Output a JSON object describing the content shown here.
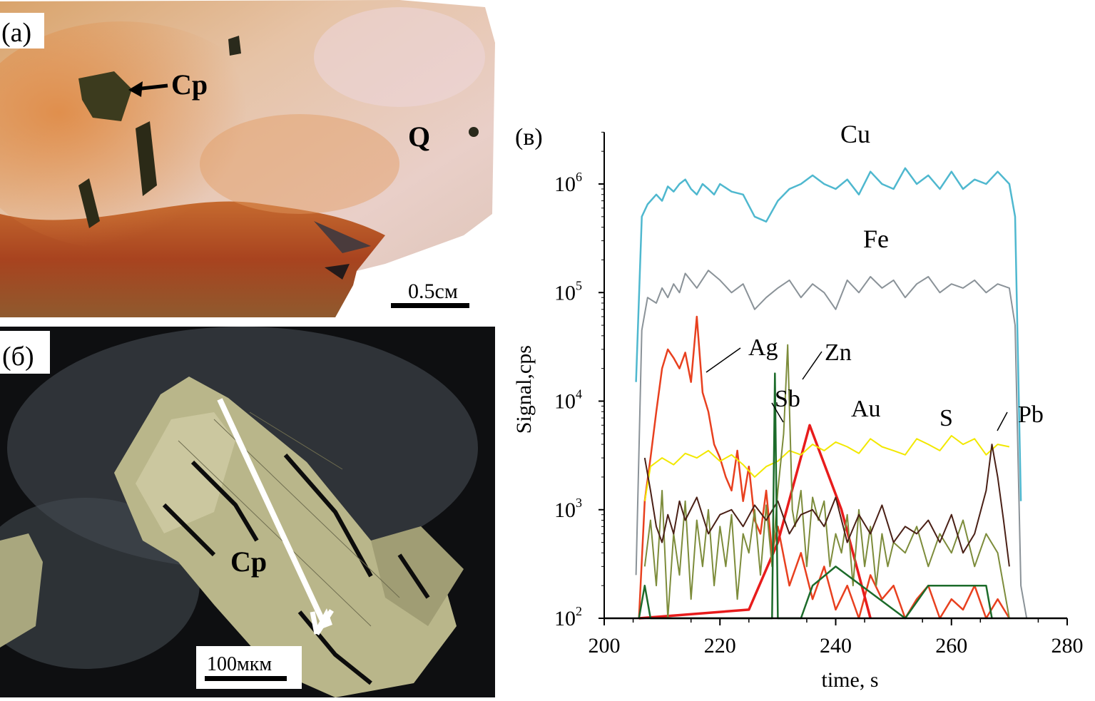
{
  "panel_a": {
    "label": "(a)",
    "mineral_cp": "Cp",
    "mineral_q": "Q",
    "scale_label": "0.5см"
  },
  "panel_b": {
    "label": "(б)",
    "mineral_cp": "Cp",
    "scale_label": "100мкм"
  },
  "chart_data": {
    "type": "line",
    "panel_label": "(в)",
    "xlabel": "time, s",
    "ylabel": "Signal,cps",
    "xlim": [
      200,
      280
    ],
    "xticks": [
      "200",
      "220",
      "240",
      "260",
      "280"
    ],
    "ylim": [
      100,
      3000000
    ],
    "yscale": "log",
    "yticks": [
      {
        "value": 100,
        "mantissa": "10",
        "exp": "2"
      },
      {
        "value": 1000,
        "mantissa": "10",
        "exp": "3"
      },
      {
        "value": 10000,
        "mantissa": "10",
        "exp": "4"
      },
      {
        "value": 100000,
        "mantissa": "10",
        "exp": "5"
      },
      {
        "value": 1000000,
        "mantissa": "10",
        "exp": "6"
      }
    ],
    "grid": false,
    "series": [
      {
        "name": "Cu",
        "color": "#4fb8cf",
        "width": 2.5,
        "x": [
          205.5,
          206.5,
          207.5,
          209,
          210,
          211,
          212,
          213,
          214,
          215,
          216,
          217,
          218,
          219,
          220,
          222,
          224,
          226,
          228,
          230,
          232,
          234,
          236,
          238,
          240,
          242,
          244,
          246,
          248,
          250,
          252,
          254,
          256,
          258,
          260,
          262,
          264,
          266,
          268,
          270,
          271,
          272
        ],
        "y": [
          15000,
          500000,
          650000,
          800000,
          700000,
          950000,
          850000,
          1000000,
          1100000,
          900000,
          800000,
          1000000,
          900000,
          800000,
          1000000,
          850000,
          800000,
          500000,
          450000,
          700000,
          900000,
          1000000,
          1200000,
          1000000,
          900000,
          1100000,
          800000,
          1300000,
          1000000,
          900000,
          1400000,
          1000000,
          1200000,
          900000,
          1300000,
          900000,
          1100000,
          1000000,
          1300000,
          1000000,
          500000,
          1200
        ]
      },
      {
        "name": "Fe",
        "color": "#8a9298",
        "width": 2,
        "x": [
          205.5,
          206.5,
          207.5,
          209,
          210,
          211,
          212,
          213,
          214,
          216,
          218,
          220,
          222,
          224,
          226,
          228,
          230,
          232,
          234,
          236,
          238,
          240,
          242,
          244,
          246,
          248,
          250,
          252,
          254,
          256,
          258,
          260,
          262,
          264,
          266,
          268,
          270,
          271,
          272,
          273
        ],
        "y": [
          250,
          45000,
          90000,
          80000,
          110000,
          90000,
          120000,
          100000,
          150000,
          110000,
          160000,
          130000,
          100000,
          120000,
          70000,
          90000,
          110000,
          130000,
          90000,
          120000,
          100000,
          70000,
          130000,
          100000,
          140000,
          110000,
          130000,
          90000,
          120000,
          140000,
          100000,
          120000,
          110000,
          130000,
          100000,
          120000,
          110000,
          50000,
          200,
          100
        ]
      },
      {
        "name": "Ag",
        "color": "#e8401f",
        "width": 2.5,
        "x": [
          206,
          207,
          208,
          209,
          210,
          211,
          212,
          213,
          214,
          215,
          216,
          217,
          218,
          219,
          220,
          221,
          222,
          223,
          224,
          225,
          226,
          227,
          228,
          229,
          230,
          232,
          234,
          236,
          238,
          240,
          242,
          244,
          246,
          248,
          250,
          252,
          254,
          256,
          258,
          260,
          262,
          264,
          266,
          268,
          270
        ],
        "y": [
          100,
          1200,
          3000,
          8000,
          20000,
          30000,
          25000,
          20000,
          28000,
          15000,
          60000,
          12000,
          8000,
          4000,
          3000,
          2000,
          1500,
          3500,
          1200,
          2500,
          800,
          600,
          1500,
          400,
          700,
          200,
          400,
          150,
          300,
          120,
          200,
          100,
          250,
          150,
          200,
          100,
          150,
          200,
          100,
          150,
          120,
          200,
          100,
          150,
          100
        ]
      },
      {
        "name": "Au",
        "color": "#e81c1c",
        "width": 3.5,
        "x": [
          206,
          225,
          230,
          235.5,
          241,
          246
        ],
        "y": [
          100,
          120,
          500,
          6000,
          1000,
          100
        ]
      },
      {
        "name": "S",
        "color": "#f2e800",
        "width": 2,
        "x": [
          207,
          208,
          210,
          212,
          214,
          216,
          218,
          220,
          222,
          224,
          226,
          228,
          230,
          232,
          234,
          236,
          238,
          240,
          242,
          244,
          246,
          248,
          250,
          252,
          254,
          256,
          258,
          260,
          262,
          264,
          266,
          268,
          270
        ],
        "y": [
          1200,
          2500,
          3000,
          2600,
          3300,
          3000,
          3500,
          2800,
          3200,
          2600,
          2000,
          2500,
          2800,
          3500,
          3200,
          4000,
          3500,
          4200,
          3800,
          3300,
          4500,
          3800,
          3500,
          3200,
          4500,
          4000,
          3500,
          4800,
          4000,
          4500,
          3200,
          4000,
          3800
        ]
      },
      {
        "name": "Zn",
        "color": "#7d8c3b",
        "width": 2,
        "x": [
          207,
          208,
          209,
          210,
          211,
          212,
          213,
          214,
          215,
          216,
          217,
          218,
          219,
          220,
          221,
          222,
          223,
          224,
          225,
          226,
          227,
          228,
          229,
          230,
          231,
          231.7,
          232.5,
          233,
          234,
          235,
          236,
          237,
          238,
          239,
          240,
          241,
          242,
          243,
          244,
          245,
          246,
          247,
          248,
          249,
          250,
          252,
          254,
          256,
          258,
          260,
          262,
          264,
          266,
          268,
          270
        ],
        "y": [
          300,
          800,
          200,
          1500,
          100,
          600,
          250,
          1200,
          150,
          800,
          300,
          1000,
          200,
          700,
          300,
          900,
          150,
          600,
          400,
          1000,
          250,
          1100,
          300,
          1500,
          5000,
          33000,
          1000,
          700,
          1500,
          300,
          1300,
          800,
          1200,
          300,
          600,
          400,
          900,
          200,
          1000,
          300,
          700,
          200,
          600,
          300,
          500,
          400,
          700,
          300,
          600,
          400,
          800,
          300,
          600,
          400,
          100
        ]
      },
      {
        "name": "Pb",
        "color": "#4a2016",
        "width": 2,
        "x": [
          207,
          208,
          209,
          210,
          211,
          212,
          213,
          214,
          216,
          218,
          220,
          222,
          224,
          226,
          228,
          230,
          232,
          234,
          236,
          238,
          240,
          242,
          244,
          246,
          248,
          250,
          252,
          254,
          256,
          258,
          260,
          262,
          264,
          266,
          267,
          268,
          269,
          270
        ],
        "y": [
          3000,
          1500,
          700,
          500,
          900,
          600,
          1200,
          800,
          1300,
          600,
          900,
          1000,
          700,
          1100,
          800,
          1200,
          600,
          900,
          1000,
          700,
          1300,
          500,
          900,
          600,
          1100,
          500,
          700,
          600,
          800,
          500,
          900,
          400,
          600,
          1500,
          4000,
          2000,
          800,
          300
        ]
      },
      {
        "name": "Sb",
        "color": "#1c6b2a",
        "width": 2.5,
        "x": [
          206,
          207,
          208,
          210,
          229,
          229.5,
          230,
          230.5,
          231,
          234,
          236,
          240,
          252,
          256,
          266,
          267
        ],
        "y": [
          100,
          200,
          100,
          100,
          100,
          18000,
          100,
          100,
          100,
          100,
          200,
          300,
          100,
          200,
          200,
          100
        ]
      }
    ],
    "annotations": [
      {
        "name": "Cu",
        "text": "Cu"
      },
      {
        "name": "Fe",
        "text": "Fe"
      },
      {
        "name": "Ag",
        "text": "Ag"
      },
      {
        "name": "Zn",
        "text": "Zn"
      },
      {
        "name": "Sb",
        "text": "Sb"
      },
      {
        "name": "Au",
        "text": "Au"
      },
      {
        "name": "S",
        "text": "S"
      },
      {
        "name": "Pb",
        "text": "Pb"
      }
    ]
  }
}
